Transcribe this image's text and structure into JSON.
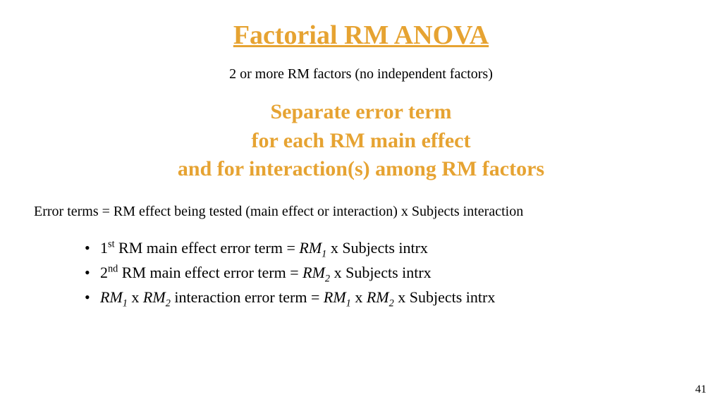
{
  "colors": {
    "accent": "#e6a332",
    "text": "#000000",
    "background": "#ffffff"
  },
  "title": "Factorial RM ANOVA",
  "subtitle": "2 or more RM factors (no independent factors)",
  "highlight": {
    "line1": "Separate error term",
    "line2": "for each RM main effect",
    "line3": "and for interaction(s) among RM factors"
  },
  "error_desc": "Error terms = RM effect being tested (main effect or interaction) x Subjects interaction",
  "bullets": {
    "b1": {
      "ord_num": "1",
      "ord_suffix": "st",
      "mid": " RM main effect error term = ",
      "rm": "RM",
      "sub": "1",
      "tail": " x Subjects intrx"
    },
    "b2": {
      "ord_num": "2",
      "ord_suffix": "nd",
      "mid": " RM main effect error term = ",
      "rm": "RM",
      "sub": "2",
      "tail": " x Subjects intrx"
    },
    "b3": {
      "rm1": "RM",
      "s1": "1",
      "x1": " x ",
      "rm2": "RM",
      "s2": "2",
      "mid": " interaction error term = ",
      "rm3": "RM",
      "s3": "1",
      "x2": " x ",
      "rm4": "RM",
      "s4": "2",
      "tail": " x Subjects intrx"
    }
  },
  "page_number": "41"
}
